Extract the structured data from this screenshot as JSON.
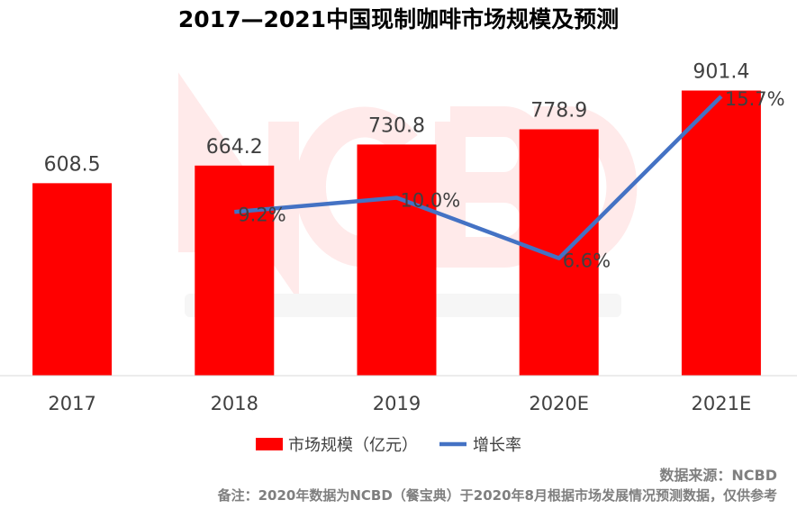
{
  "chart_data": {
    "type": "bar+line",
    "title": "2017—2021中国现制咖啡市场规模及预测",
    "categories": [
      "2017",
      "2018",
      "2019",
      "2020E",
      "2021E"
    ],
    "series": [
      {
        "name": "市场规模（亿元）",
        "type": "bar",
        "axis": "primary",
        "values": [
          608.5,
          664.2,
          730.8,
          778.9,
          901.4
        ],
        "labels": [
          "608.5",
          "664.2",
          "730.8",
          "778.9",
          "901.4"
        ],
        "color": "#ff0000"
      },
      {
        "name": "增长率",
        "type": "line",
        "axis": "secondary",
        "values": [
          null,
          9.2,
          10.0,
          6.6,
          15.7
        ],
        "labels": [
          null,
          "9.2%",
          "10.0%",
          "6.6%",
          "15.7%"
        ],
        "color": "#4472c4"
      }
    ],
    "ylim": [
      0,
      900
    ],
    "y2lim": [
      0,
      16
    ],
    "grid": false,
    "legend": "bottom"
  },
  "watermark": {
    "logo": "NCBD",
    "text": "餐宝典 New Catering Big Data"
  },
  "footer": {
    "source": "数据来源：NCBD",
    "note": "备注：2020年数据为NCBD（餐宝典）于2020年8月根据市场发展情况预测数据，仅供参考"
  }
}
